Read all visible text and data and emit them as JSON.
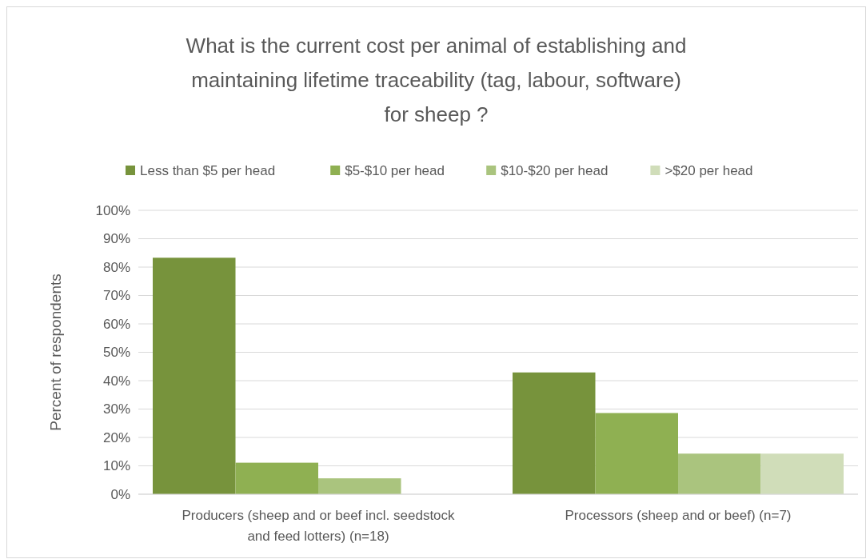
{
  "chart_data": {
    "type": "bar",
    "title": "What is the current cost per animal of establishing and maintaining lifetime traceability (tag, labour, software) for sheep ?",
    "ylabel": "Percent of respondents",
    "categories": [
      "Producers (sheep and or beef incl. seedstock and feed lotters) (n=18)",
      "Processors (sheep and or beef) (n=7)"
    ],
    "series": [
      {
        "name": "Less than $5 per head",
        "color": "#77933c",
        "values": [
          83.3,
          42.9
        ]
      },
      {
        "name": "$5-$10 per head",
        "color": "#8fb052",
        "values": [
          11.1,
          28.6
        ]
      },
      {
        "name": "$10-$20 per head",
        "color": "#aac47e",
        "values": [
          5.6,
          14.3
        ]
      },
      {
        "name": ">$20 per head",
        "color": "#d0ddb9",
        "values": [
          0,
          14.3
        ]
      }
    ],
    "ylim": [
      0,
      100
    ],
    "yticks": [
      {
        "value": 0,
        "label": "0%"
      },
      {
        "value": 10,
        "label": "10%"
      },
      {
        "value": 20,
        "label": "20%"
      },
      {
        "value": 30,
        "label": "30%"
      },
      {
        "value": 40,
        "label": "40%"
      },
      {
        "value": 50,
        "label": "50%"
      },
      {
        "value": 60,
        "label": "60%"
      },
      {
        "value": 70,
        "label": "70%"
      },
      {
        "value": 80,
        "label": "80%"
      },
      {
        "value": 90,
        "label": "90%"
      },
      {
        "value": 100,
        "label": "100%"
      }
    ],
    "grid": "y",
    "legend": "top"
  }
}
